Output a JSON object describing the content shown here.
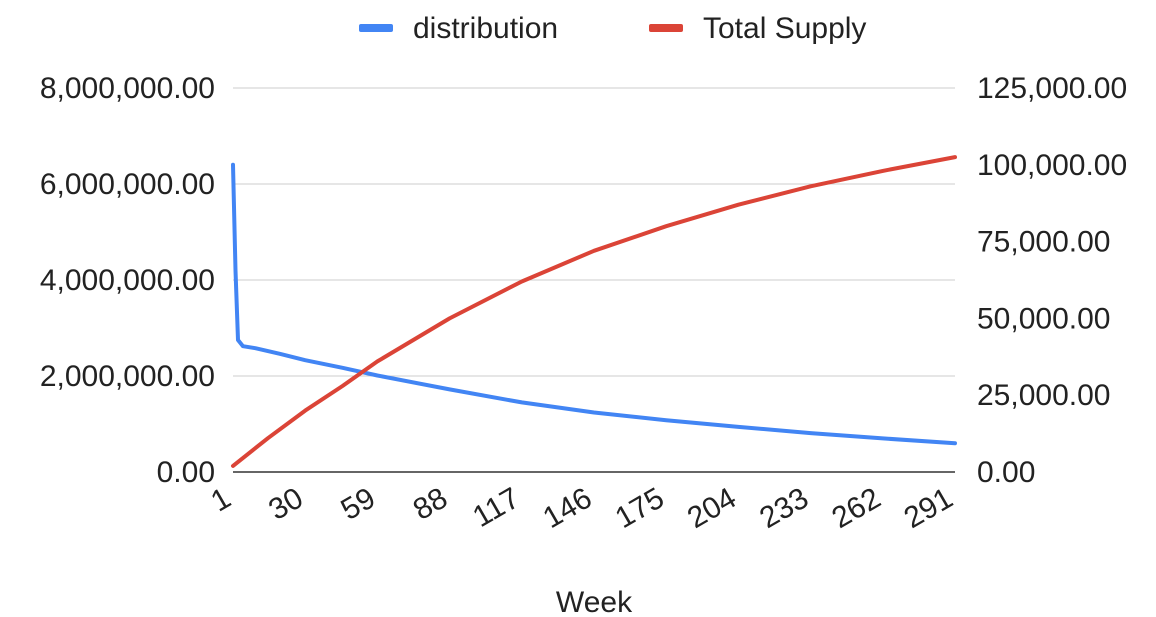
{
  "chart_data": {
    "type": "line",
    "title": "",
    "xlabel": "Week",
    "ylabel": "",
    "y2label": "",
    "legend_position": "top",
    "grid": true,
    "x_ticks": [
      1,
      30,
      59,
      88,
      117,
      146,
      175,
      204,
      233,
      262,
      291
    ],
    "x_range": [
      1,
      291
    ],
    "y_left": {
      "range": [
        0,
        8000000
      ],
      "ticks": [
        0,
        2000000,
        4000000,
        6000000,
        8000000
      ],
      "tick_labels": [
        "0.00",
        "2,000,000.00",
        "4,000,000.00",
        "6,000,000.00",
        "8,000,000.00"
      ]
    },
    "y_right": {
      "range": [
        0,
        125000
      ],
      "ticks": [
        0,
        25000,
        50000,
        75000,
        100000,
        125000
      ],
      "tick_labels": [
        "0.00",
        "25,000.00",
        "50,000.00",
        "75,000.00",
        "100,000.00",
        "125,000.00"
      ]
    },
    "x_tick_labels": [
      "1",
      "30",
      "59",
      "88",
      "117",
      "146",
      "175",
      "204",
      "233",
      "262",
      "291"
    ],
    "series": [
      {
        "name": "distribution",
        "color": "#4285f4",
        "axis": "left",
        "x": [
          1,
          2,
          3,
          5,
          10,
          20,
          30,
          45,
          59,
          88,
          117,
          146,
          175,
          204,
          233,
          262,
          291
        ],
        "values": [
          6400000,
          4200000,
          2750000,
          2620000,
          2580000,
          2460000,
          2330000,
          2170000,
          2010000,
          1720000,
          1450000,
          1240000,
          1080000,
          940000,
          810000,
          700000,
          600000
        ]
      },
      {
        "name": "Total Supply",
        "color": "#db4437",
        "axis": "right",
        "x": [
          1,
          15,
          30,
          45,
          59,
          88,
          117,
          146,
          175,
          204,
          233,
          262,
          291
        ],
        "values": [
          2000,
          11000,
          20000,
          28000,
          36000,
          50000,
          62000,
          72000,
          80000,
          87000,
          93000,
          98000,
          102500
        ]
      }
    ]
  }
}
